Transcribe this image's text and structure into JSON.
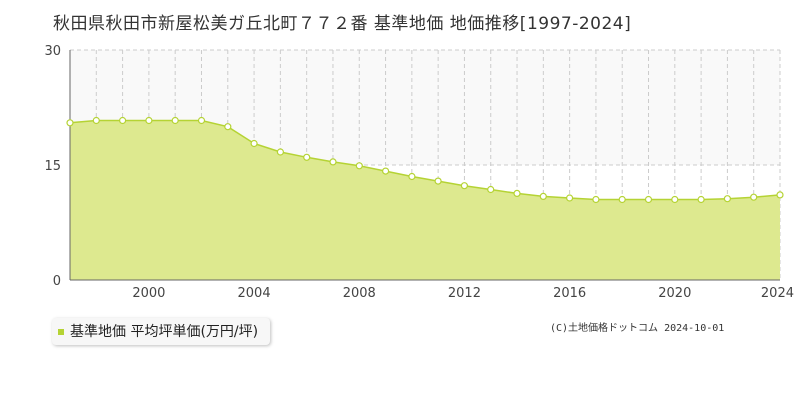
{
  "title": "秋田県秋田市新屋松美ガ丘北町７７２番 基準地価 地価推移[1997-2024]",
  "legend_label": "基準地価 平均坪単価(万円/坪)",
  "copyright": "(C)土地価格ドットコム 2024-10-01",
  "colors": {
    "fill": "#dde98f",
    "line": "#b5d334",
    "marker_fill": "#ffffff",
    "grid": "#cccccc",
    "upper_band": "#f9f9f9"
  },
  "chart_data": {
    "type": "area",
    "title": "秋田県秋田市新屋松美ガ丘北町７７２番 基準地価 地価推移[1997-2024]",
    "xlabel": "",
    "ylabel": "",
    "xlim": [
      1997,
      2024
    ],
    "ylim": [
      0,
      30
    ],
    "yticks": [
      0,
      15,
      30
    ],
    "xticks": [
      2000,
      2004,
      2008,
      2012,
      2016,
      2020,
      2024
    ],
    "grid": true,
    "legend_position": "bottom-left",
    "series": [
      {
        "name": "基準地価 平均坪単価(万円/坪)",
        "x": [
          1997,
          1998,
          1999,
          2000,
          2001,
          2002,
          2003,
          2004,
          2005,
          2006,
          2007,
          2008,
          2009,
          2010,
          2011,
          2012,
          2013,
          2014,
          2015,
          2016,
          2017,
          2018,
          2019,
          2020,
          2021,
          2022,
          2023,
          2024
        ],
        "values": [
          20.5,
          20.8,
          20.8,
          20.8,
          20.8,
          20.8,
          20.0,
          17.8,
          16.7,
          16.0,
          15.4,
          14.9,
          14.2,
          13.5,
          12.9,
          12.3,
          11.8,
          11.3,
          10.9,
          10.7,
          10.5,
          10.5,
          10.5,
          10.5,
          10.5,
          10.6,
          10.8,
          11.1
        ]
      }
    ]
  }
}
